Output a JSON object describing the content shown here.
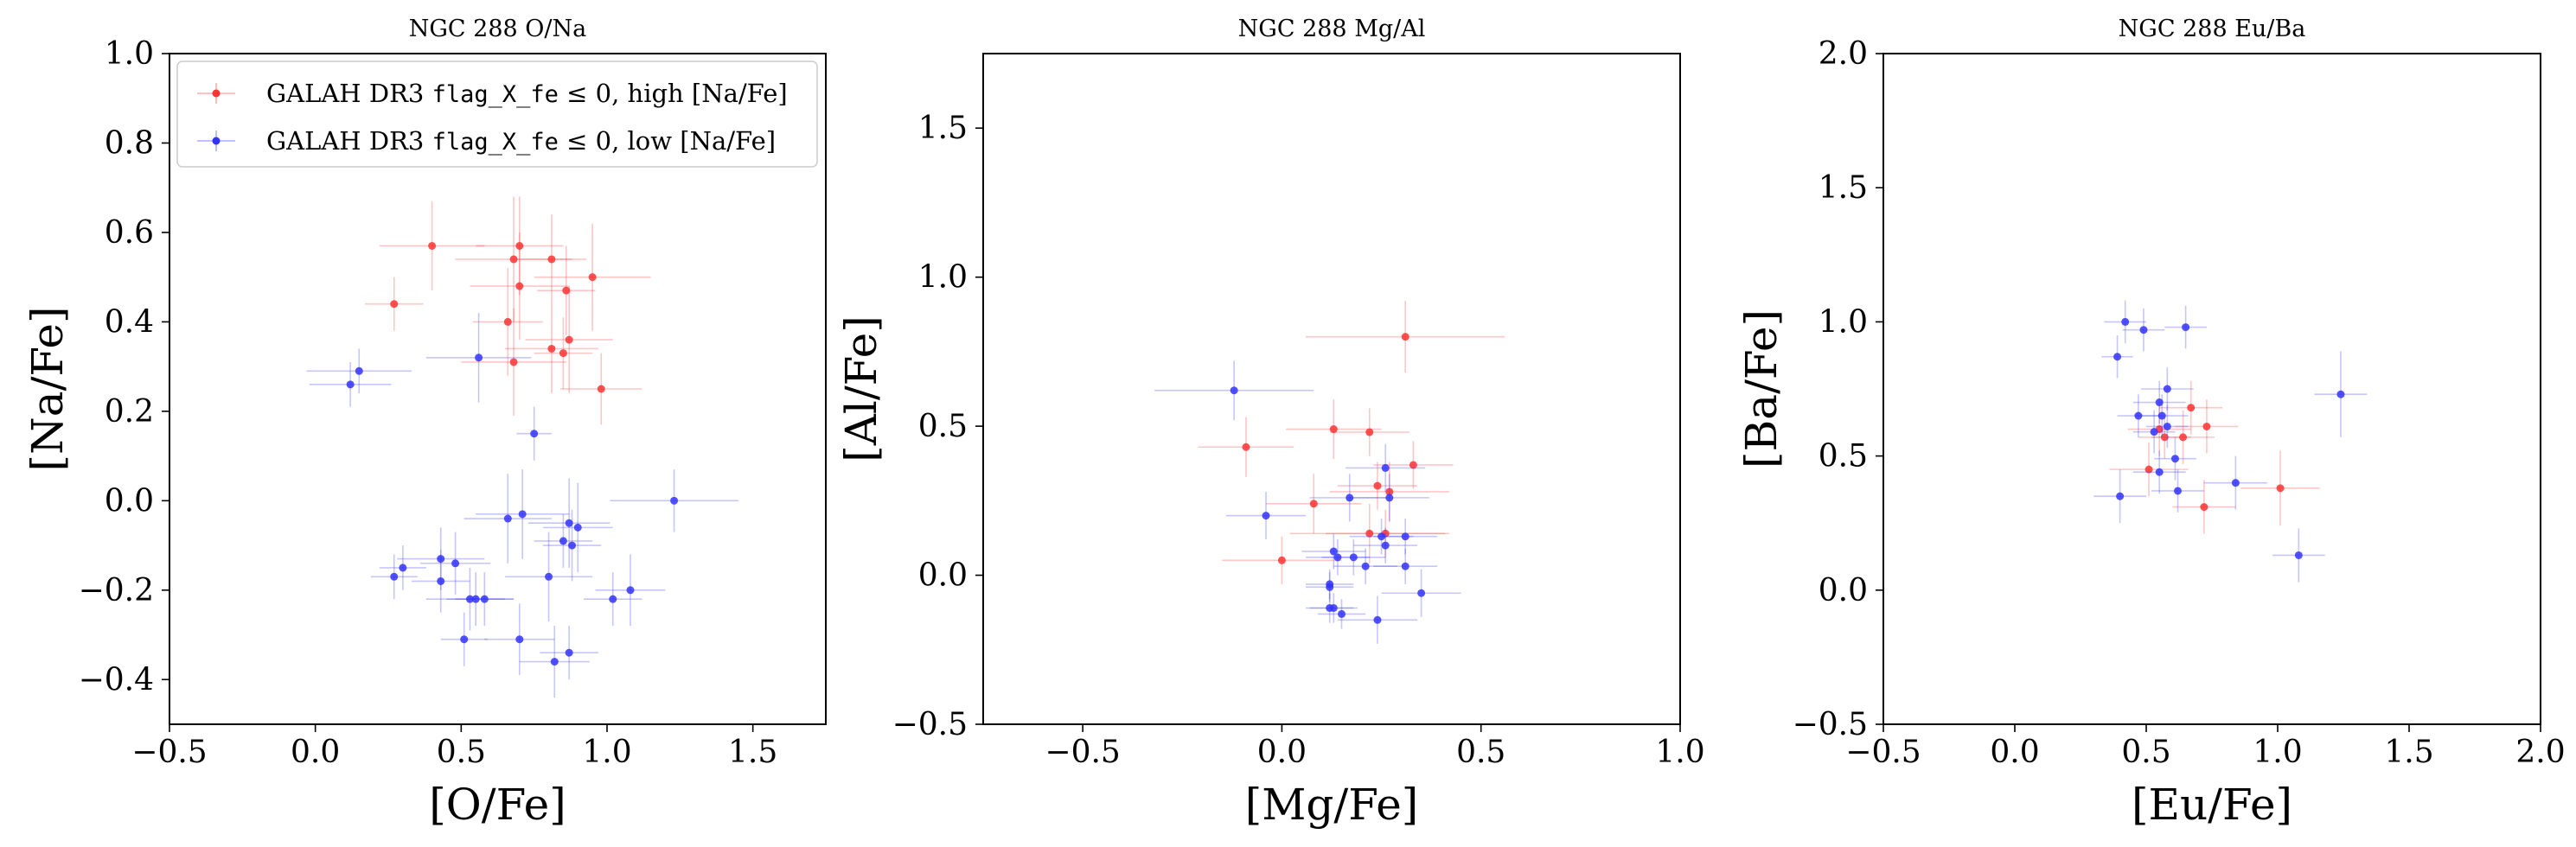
{
  "figure": {
    "panels": [
      {
        "title": "NGC 288 O/Na",
        "xlabel": "[O/Fe]",
        "ylabel": "[Na/Fe]",
        "xlim": [
          -0.5,
          1.75
        ],
        "ylim": [
          -0.5,
          1.0
        ],
        "xticks": [
          -0.5,
          0.0,
          0.5,
          1.0,
          1.5
        ],
        "xticklabels": [
          "−0.5",
          "0.0",
          "0.5",
          "1.0",
          "1.5"
        ],
        "yticks": [
          -0.4,
          -0.2,
          0.0,
          0.2,
          0.4,
          0.6,
          0.8,
          1.0
        ],
        "yticklabels": [
          "−0.4",
          "−0.2",
          "0.0",
          "0.2",
          "0.4",
          "0.6",
          "0.8",
          "1.0"
        ]
      },
      {
        "title": "NGC 288 Mg/Al",
        "xlabel": "[Mg/Fe]",
        "ylabel": "[Al/Fe]",
        "xlim": [
          -0.75,
          1.0
        ],
        "ylim": [
          -0.5,
          1.75
        ],
        "xticks": [
          -0.5,
          0.0,
          0.5,
          1.0
        ],
        "xticklabels": [
          "−0.5",
          "0.0",
          "0.5",
          "1.0"
        ],
        "yticks": [
          -0.5,
          0.0,
          0.5,
          1.0,
          1.5
        ],
        "yticklabels": [
          "−0.5",
          "0.0",
          "0.5",
          "1.0",
          "1.5"
        ]
      },
      {
        "title": "NGC 288 Eu/Ba",
        "xlabel": "[Eu/Fe]",
        "ylabel": "[Ba/Fe]",
        "xlim": [
          -0.5,
          2.0
        ],
        "ylim": [
          -0.5,
          2.0
        ],
        "xticks": [
          -0.5,
          0.0,
          0.5,
          1.0,
          1.5,
          2.0
        ],
        "xticklabels": [
          "−0.5",
          "0.0",
          "0.5",
          "1.0",
          "1.5",
          "2.0"
        ],
        "yticks": [
          -0.5,
          0.0,
          0.5,
          1.0,
          1.5,
          2.0
        ],
        "yticklabels": [
          "−0.5",
          "0.0",
          "0.5",
          "1.0",
          "1.5",
          "2.0"
        ]
      }
    ],
    "legend": {
      "placement": "top-left of first panel",
      "entries": [
        {
          "prefix": "GALAH DR3 ",
          "code": "flag_X_fe",
          "suffix": " ≤ 0, high [Na/Fe]",
          "color": "#ff3333"
        },
        {
          "prefix": "GALAH DR3 ",
          "code": "flag_X_fe",
          "suffix": " ≤ 0, low [Na/Fe]",
          "color": "#3333ff"
        }
      ]
    }
  },
  "chart_data": [
    {
      "type": "scatter",
      "title": "NGC 288 O/Na",
      "xlabel": "[O/Fe]",
      "ylabel": "[Na/Fe]",
      "xlim": [
        -0.5,
        1.75
      ],
      "ylim": [
        -0.5,
        1.0
      ],
      "grid": false,
      "legend": "top-left",
      "series": [
        {
          "name": "GALAH DR3 flag_X_fe ≤ 0, high [Na/Fe]",
          "color": "#ff3333",
          "points": [
            {
              "x": 0.4,
              "y": 0.57,
              "xerr": 0.18,
              "yerr": 0.1
            },
            {
              "x": 0.27,
              "y": 0.44,
              "xerr": 0.1,
              "yerr": 0.06
            },
            {
              "x": 0.7,
              "y": 0.57,
              "xerr": 0.15,
              "yerr": 0.11
            },
            {
              "x": 0.68,
              "y": 0.54,
              "xerr": 0.2,
              "yerr": 0.14
            },
            {
              "x": 0.81,
              "y": 0.54,
              "xerr": 0.12,
              "yerr": 0.1
            },
            {
              "x": 0.7,
              "y": 0.48,
              "xerr": 0.17,
              "yerr": 0.12
            },
            {
              "x": 0.95,
              "y": 0.5,
              "xerr": 0.2,
              "yerr": 0.12
            },
            {
              "x": 0.86,
              "y": 0.47,
              "xerr": 0.1,
              "yerr": 0.1
            },
            {
              "x": 0.66,
              "y": 0.4,
              "xerr": 0.12,
              "yerr": 0.12
            },
            {
              "x": 0.87,
              "y": 0.36,
              "xerr": 0.15,
              "yerr": 0.12
            },
            {
              "x": 0.81,
              "y": 0.34,
              "xerr": 0.16,
              "yerr": 0.1
            },
            {
              "x": 0.85,
              "y": 0.33,
              "xerr": 0.1,
              "yerr": 0.08
            },
            {
              "x": 0.68,
              "y": 0.31,
              "xerr": 0.18,
              "yerr": 0.12
            },
            {
              "x": 0.98,
              "y": 0.25,
              "xerr": 0.14,
              "yerr": 0.08
            }
          ]
        },
        {
          "name": "GALAH DR3 flag_X_fe ≤ 0, low [Na/Fe]",
          "color": "#3333ff",
          "points": [
            {
              "x": 0.15,
              "y": 0.29,
              "xerr": 0.18,
              "yerr": 0.05
            },
            {
              "x": 0.12,
              "y": 0.26,
              "xerr": 0.14,
              "yerr": 0.05
            },
            {
              "x": 0.56,
              "y": 0.32,
              "xerr": 0.18,
              "yerr": 0.1
            },
            {
              "x": 0.75,
              "y": 0.15,
              "xerr": 0.06,
              "yerr": 0.06
            },
            {
              "x": 1.23,
              "y": 0.0,
              "xerr": 0.22,
              "yerr": 0.07
            },
            {
              "x": 0.66,
              "y": -0.04,
              "xerr": 0.15,
              "yerr": 0.1
            },
            {
              "x": 0.71,
              "y": -0.03,
              "xerr": 0.16,
              "yerr": 0.1
            },
            {
              "x": 0.87,
              "y": -0.05,
              "xerr": 0.14,
              "yerr": 0.1
            },
            {
              "x": 0.9,
              "y": -0.06,
              "xerr": 0.12,
              "yerr": 0.1
            },
            {
              "x": 0.85,
              "y": -0.09,
              "xerr": 0.1,
              "yerr": 0.06
            },
            {
              "x": 0.88,
              "y": -0.1,
              "xerr": 0.1,
              "yerr": 0.08
            },
            {
              "x": 0.27,
              "y": -0.17,
              "xerr": 0.08,
              "yerr": 0.05
            },
            {
              "x": 0.3,
              "y": -0.15,
              "xerr": 0.08,
              "yerr": 0.05
            },
            {
              "x": 0.43,
              "y": -0.13,
              "xerr": 0.15,
              "yerr": 0.07
            },
            {
              "x": 0.48,
              "y": -0.14,
              "xerr": 0.12,
              "yerr": 0.07
            },
            {
              "x": 0.43,
              "y": -0.18,
              "xerr": 0.1,
              "yerr": 0.07
            },
            {
              "x": 0.53,
              "y": -0.22,
              "xerr": 0.15,
              "yerr": 0.07
            },
            {
              "x": 0.55,
              "y": -0.22,
              "xerr": 0.1,
              "yerr": 0.06
            },
            {
              "x": 0.58,
              "y": -0.22,
              "xerr": 0.1,
              "yerr": 0.06
            },
            {
              "x": 0.8,
              "y": -0.17,
              "xerr": 0.15,
              "yerr": 0.1
            },
            {
              "x": 1.08,
              "y": -0.2,
              "xerr": 0.12,
              "yerr": 0.08
            },
            {
              "x": 1.02,
              "y": -0.22,
              "xerr": 0.1,
              "yerr": 0.06
            },
            {
              "x": 0.51,
              "y": -0.31,
              "xerr": 0.08,
              "yerr": 0.06
            },
            {
              "x": 0.7,
              "y": -0.31,
              "xerr": 0.12,
              "yerr": 0.08
            },
            {
              "x": 0.87,
              "y": -0.34,
              "xerr": 0.1,
              "yerr": 0.06
            },
            {
              "x": 0.82,
              "y": -0.36,
              "xerr": 0.12,
              "yerr": 0.08
            }
          ]
        }
      ]
    },
    {
      "type": "scatter",
      "title": "NGC 288 Mg/Al",
      "xlabel": "[Mg/Fe]",
      "ylabel": "[Al/Fe]",
      "xlim": [
        -0.75,
        1.0
      ],
      "ylim": [
        -0.5,
        1.75
      ],
      "grid": false,
      "series": [
        {
          "name": "GALAH DR3 flag_X_fe ≤ 0, high [Na/Fe]",
          "color": "#ff3333",
          "points": [
            {
              "x": 0.31,
              "y": 0.8,
              "xerr": 0.25,
              "yerr": 0.12
            },
            {
              "x": 0.13,
              "y": 0.49,
              "xerr": 0.12,
              "yerr": 0.1
            },
            {
              "x": 0.22,
              "y": 0.48,
              "xerr": 0.1,
              "yerr": 0.08
            },
            {
              "x": -0.09,
              "y": 0.43,
              "xerr": 0.12,
              "yerr": 0.1
            },
            {
              "x": 0.33,
              "y": 0.37,
              "xerr": 0.1,
              "yerr": 0.08
            },
            {
              "x": 0.24,
              "y": 0.3,
              "xerr": 0.1,
              "yerr": 0.08
            },
            {
              "x": 0.27,
              "y": 0.28,
              "xerr": 0.15,
              "yerr": 0.1
            },
            {
              "x": 0.08,
              "y": 0.24,
              "xerr": 0.12,
              "yerr": 0.1
            },
            {
              "x": 0.22,
              "y": 0.14,
              "xerr": 0.2,
              "yerr": 0.1
            },
            {
              "x": 0.26,
              "y": 0.14,
              "xerr": 0.15,
              "yerr": 0.08
            },
            {
              "x": 0.0,
              "y": 0.05,
              "xerr": 0.15,
              "yerr": 0.08
            }
          ]
        },
        {
          "name": "GALAH DR3 flag_X_fe ≤ 0, low [Na/Fe]",
          "color": "#3333ff",
          "points": [
            {
              "x": -0.12,
              "y": 0.62,
              "xerr": 0.2,
              "yerr": 0.1
            },
            {
              "x": -0.04,
              "y": 0.2,
              "xerr": 0.1,
              "yerr": 0.08
            },
            {
              "x": 0.26,
              "y": 0.36,
              "xerr": 0.1,
              "yerr": 0.08
            },
            {
              "x": 0.27,
              "y": 0.26,
              "xerr": 0.1,
              "yerr": 0.08
            },
            {
              "x": 0.17,
              "y": 0.26,
              "xerr": 0.1,
              "yerr": 0.08
            },
            {
              "x": 0.25,
              "y": 0.13,
              "xerr": 0.08,
              "yerr": 0.06
            },
            {
              "x": 0.31,
              "y": 0.13,
              "xerr": 0.08,
              "yerr": 0.06
            },
            {
              "x": 0.13,
              "y": 0.08,
              "xerr": 0.08,
              "yerr": 0.06
            },
            {
              "x": 0.14,
              "y": 0.06,
              "xerr": 0.08,
              "yerr": 0.06
            },
            {
              "x": 0.18,
              "y": 0.06,
              "xerr": 0.08,
              "yerr": 0.06
            },
            {
              "x": 0.26,
              "y": 0.1,
              "xerr": 0.08,
              "yerr": 0.06
            },
            {
              "x": 0.21,
              "y": 0.03,
              "xerr": 0.08,
              "yerr": 0.06
            },
            {
              "x": 0.31,
              "y": 0.03,
              "xerr": 0.08,
              "yerr": 0.06
            },
            {
              "x": 0.12,
              "y": -0.03,
              "xerr": 0.06,
              "yerr": 0.05
            },
            {
              "x": 0.12,
              "y": -0.04,
              "xerr": 0.06,
              "yerr": 0.05
            },
            {
              "x": 0.35,
              "y": -0.06,
              "xerr": 0.1,
              "yerr": 0.08
            },
            {
              "x": 0.12,
              "y": -0.11,
              "xerr": 0.06,
              "yerr": 0.05
            },
            {
              "x": 0.13,
              "y": -0.11,
              "xerr": 0.06,
              "yerr": 0.05
            },
            {
              "x": 0.15,
              "y": -0.13,
              "xerr": 0.06,
              "yerr": 0.05
            },
            {
              "x": 0.24,
              "y": -0.15,
              "xerr": 0.1,
              "yerr": 0.08
            }
          ]
        }
      ]
    },
    {
      "type": "scatter",
      "title": "NGC 288 Eu/Ba",
      "xlabel": "[Eu/Fe]",
      "ylabel": "[Ba/Fe]",
      "xlim": [
        -0.5,
        2.0
      ],
      "ylim": [
        -0.5,
        2.0
      ],
      "grid": false,
      "series": [
        {
          "name": "GALAH DR3 flag_X_fe ≤ 0, high [Na/Fe]",
          "color": "#ff3333",
          "points": [
            {
              "x": 0.67,
              "y": 0.68,
              "xerr": 0.12,
              "yerr": 0.1
            },
            {
              "x": 0.73,
              "y": 0.61,
              "xerr": 0.12,
              "yerr": 0.1
            },
            {
              "x": 0.55,
              "y": 0.6,
              "xerr": 0.12,
              "yerr": 0.1
            },
            {
              "x": 0.57,
              "y": 0.57,
              "xerr": 0.1,
              "yerr": 0.08
            },
            {
              "x": 0.64,
              "y": 0.57,
              "xerr": 0.12,
              "yerr": 0.1
            },
            {
              "x": 0.51,
              "y": 0.45,
              "xerr": 0.15,
              "yerr": 0.1
            },
            {
              "x": 1.01,
              "y": 0.38,
              "xerr": 0.15,
              "yerr": 0.14
            },
            {
              "x": 0.72,
              "y": 0.31,
              "xerr": 0.12,
              "yerr": 0.1
            }
          ]
        },
        {
          "name": "GALAH DR3 flag_X_fe ≤ 0, low [Na/Fe]",
          "color": "#3333ff",
          "points": [
            {
              "x": 0.42,
              "y": 1.0,
              "xerr": 0.08,
              "yerr": 0.08
            },
            {
              "x": 0.49,
              "y": 0.97,
              "xerr": 0.08,
              "yerr": 0.08
            },
            {
              "x": 0.65,
              "y": 0.98,
              "xerr": 0.08,
              "yerr": 0.08
            },
            {
              "x": 0.39,
              "y": 0.87,
              "xerr": 0.06,
              "yerr": 0.08
            },
            {
              "x": 1.24,
              "y": 0.73,
              "xerr": 0.1,
              "yerr": 0.16
            },
            {
              "x": 0.58,
              "y": 0.75,
              "xerr": 0.1,
              "yerr": 0.08
            },
            {
              "x": 0.55,
              "y": 0.7,
              "xerr": 0.1,
              "yerr": 0.08
            },
            {
              "x": 0.47,
              "y": 0.65,
              "xerr": 0.08,
              "yerr": 0.08
            },
            {
              "x": 0.56,
              "y": 0.65,
              "xerr": 0.1,
              "yerr": 0.08
            },
            {
              "x": 0.58,
              "y": 0.61,
              "xerr": 0.08,
              "yerr": 0.08
            },
            {
              "x": 0.53,
              "y": 0.59,
              "xerr": 0.08,
              "yerr": 0.08
            },
            {
              "x": 0.61,
              "y": 0.49,
              "xerr": 0.08,
              "yerr": 0.08
            },
            {
              "x": 0.55,
              "y": 0.44,
              "xerr": 0.1,
              "yerr": 0.08
            },
            {
              "x": 0.84,
              "y": 0.4,
              "xerr": 0.12,
              "yerr": 0.1
            },
            {
              "x": 0.62,
              "y": 0.37,
              "xerr": 0.1,
              "yerr": 0.08
            },
            {
              "x": 0.4,
              "y": 0.35,
              "xerr": 0.1,
              "yerr": 0.1
            },
            {
              "x": 1.08,
              "y": 0.13,
              "xerr": 0.1,
              "yerr": 0.1
            }
          ]
        }
      ]
    }
  ]
}
